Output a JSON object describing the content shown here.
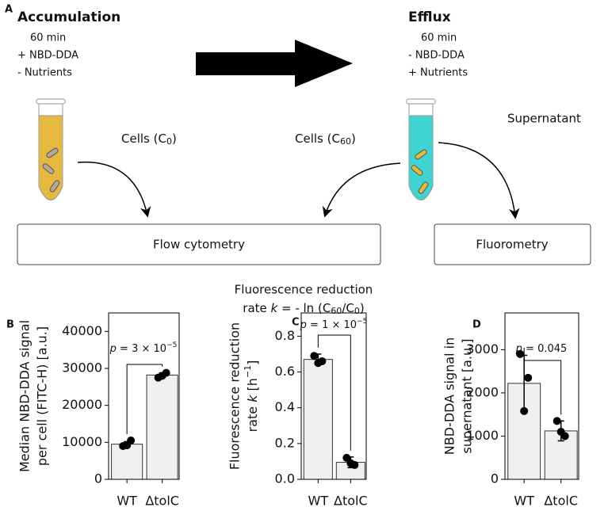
{
  "diagram": {
    "panel": "A",
    "accumulation": {
      "title": "Accumulation",
      "lines": [
        "60 min",
        "+ NBD-DDA",
        "-  Nutrients"
      ]
    },
    "efflux": {
      "title": "Efflux",
      "lines": [
        "60 min",
        "-  NBD-DDA",
        "+ Nutrients"
      ]
    },
    "cells_c0": [
      "Cells (C",
      "0",
      ")"
    ],
    "cells_c60": [
      "Cells (C",
      "60",
      ")"
    ],
    "supernatant": "Supernatant",
    "flow_cytometry": "Flow cytometry",
    "fluorometry": "Fluorometry",
    "formula": [
      "Fluorescence reduction",
      "rate ",
      "k",
      " = - ln (C",
      "60",
      "/C",
      "0",
      ")"
    ]
  },
  "chart_data": [
    {
      "type": "bar",
      "panel": "B",
      "ylabel": [
        [
          "Median NBD-DDA signal"
        ],
        [
          "per cell (FITC-H) [a.u.]"
        ]
      ],
      "categories": [
        "WT",
        "ΔtolC"
      ],
      "values": [
        9500,
        28200
      ],
      "errors": [
        700,
        600
      ],
      "points": [
        [
          9000,
          10500,
          9200
        ],
        [
          27500,
          28800,
          28000
        ]
      ],
      "color": "#f0f0f0",
      "ylim": [
        0,
        45000
      ],
      "yticks": [
        0,
        10000,
        20000,
        30000,
        40000
      ],
      "annotation": [
        "p",
        " = 3 × 10",
        "−5"
      ]
    },
    {
      "type": "bar",
      "panel": "C",
      "ylabel": [
        [
          "Fluorescence reduction"
        ],
        [
          "rate ",
          "k",
          " [h",
          "−1",
          "]"
        ]
      ],
      "categories": [
        "WT",
        "ΔtolC"
      ],
      "values": [
        0.67,
        0.095
      ],
      "errors": [
        0.03,
        0.03
      ],
      "points": [
        [
          0.69,
          0.66,
          0.65
        ],
        [
          0.12,
          0.08,
          0.09
        ]
      ],
      "color": "#f0f0f0",
      "ylim": [
        0,
        0.93
      ],
      "yticks": [
        {
          "value": 0,
          "label": "0.0"
        },
        0.2,
        0.4,
        0.6,
        0.8
      ],
      "annotation": [
        "p",
        " = 1 × 10",
        "−5"
      ]
    },
    {
      "type": "bar",
      "panel": "D",
      "ylabel": [
        [
          "NBD-DDA signal in"
        ],
        [
          "supernatant [a.u.]"
        ]
      ],
      "categories": [
        "WT",
        "ΔtolC"
      ],
      "values": [
        2220,
        1120
      ],
      "errors": [
        650,
        230
      ],
      "points": [
        [
          2900,
          2350,
          1580
        ],
        [
          1350,
          1000,
          1100
        ]
      ],
      "color": "#f0f0f0",
      "ylim": [
        0,
        3850
      ],
      "yticks": [
        0,
        1000,
        2000,
        3000
      ],
      "annotation": [
        "p",
        " = 0.045"
      ]
    }
  ]
}
